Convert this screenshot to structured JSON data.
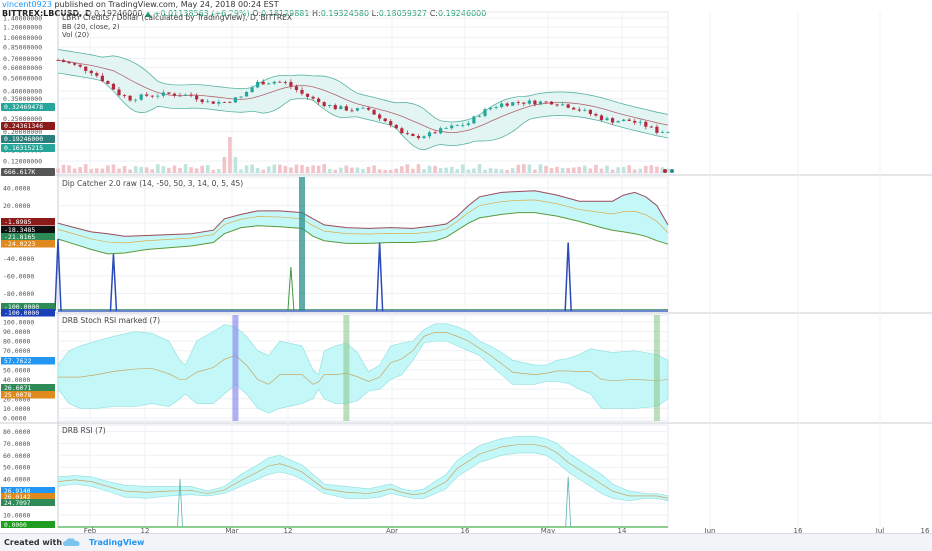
{
  "header": {
    "user": "vincent0923",
    "published": "published on TradingView.com, May 24, 2018 00:24 EST",
    "symbol": "BITTREX:LBCUSD, D",
    "last": "0.19246000",
    "change": "▲ +0.01138563 (+6.29%)",
    "open_label": "O:",
    "open": "0.18129881",
    "high_label": "H:",
    "high": "0.19324580",
    "low_label": "L:",
    "low": "0.18059327",
    "close_label": "C:",
    "close": "0.19246000"
  },
  "footer": {
    "created": "Created with",
    "brand": "TradingView"
  },
  "colors": {
    "bb_fill": "#e2f5f2",
    "bb_line": "#59b3a3",
    "basis": "#b4646e",
    "up": "#26a69a",
    "down": "#b5283f",
    "cyan_fill": "#c4f7f7",
    "blue_spike": "#2c4ab8",
    "green_spike": "#3f9a3f",
    "teal_bar": "#2a8f8a",
    "grid": "#eef1f4",
    "axis_text": "#555555"
  },
  "chart_data": [
    {
      "type": "candlestick",
      "title": "LBRY Credits / Dollar (calculated by TradingView), D, BITTREX",
      "legend": [
        "BB (20, close, 2)",
        "Vol (20)"
      ],
      "scale": "log",
      "y_ticks": [
        "1.40000000",
        "1.20000000",
        "1.00000000",
        "0.85000000",
        "0.70000000",
        "0.60000000",
        "0.50000000",
        "0.40000000",
        "0.35000000",
        "0.25000000",
        "0.20000000",
        "0.14500000",
        "0.12000000"
      ],
      "price_badges": [
        {
          "text": "0.32469478",
          "color": "#26a69a"
        },
        {
          "text": "0.24361346",
          "color": "#8b1a1a"
        },
        {
          "text": "0.19246000",
          "color": "#2a7f7c"
        },
        {
          "text": "0.16315215",
          "color": "#26a69a"
        },
        {
          "text": "666.617K",
          "color": "#555555"
        }
      ],
      "x_labels": [
        "Feb",
        "12",
        "Mar",
        "12",
        "Apr",
        "16",
        "May",
        "14",
        "Jun",
        "16",
        "Jul",
        "16"
      ],
      "close_path": [
        [
          0,
          0.68
        ],
        [
          3,
          0.62
        ],
        [
          6,
          0.56
        ],
        [
          9,
          0.45
        ],
        [
          11,
          0.38
        ],
        [
          13,
          0.35
        ],
        [
          16,
          0.37
        ],
        [
          20,
          0.38
        ],
        [
          24,
          0.37
        ],
        [
          27,
          0.33
        ],
        [
          30,
          0.33
        ],
        [
          33,
          0.36
        ],
        [
          36,
          0.46
        ],
        [
          39,
          0.47
        ],
        [
          41,
          0.46
        ],
        [
          44,
          0.38
        ],
        [
          47,
          0.33
        ],
        [
          50,
          0.3
        ],
        [
          53,
          0.29
        ],
        [
          56,
          0.29
        ],
        [
          58,
          0.25
        ],
        [
          60,
          0.23
        ],
        [
          62,
          0.19
        ],
        [
          64,
          0.18
        ],
        [
          67,
          0.19
        ],
        [
          70,
          0.21
        ],
        [
          72,
          0.22
        ],
        [
          74,
          0.23
        ],
        [
          76,
          0.27
        ],
        [
          78,
          0.3
        ],
        [
          80,
          0.32
        ],
        [
          83,
          0.33
        ],
        [
          86,
          0.33
        ],
        [
          89,
          0.33
        ],
        [
          92,
          0.31
        ],
        [
          94,
          0.29
        ],
        [
          96,
          0.27
        ],
        [
          98,
          0.25
        ],
        [
          100,
          0.24
        ],
        [
          103,
          0.24
        ],
        [
          106,
          0.22
        ],
        [
          108,
          0.2
        ],
        [
          110,
          0.2
        ]
      ]
    },
    {
      "type": "line",
      "title": "Dip Catcher 2.0 raw (14, -50, 50, 3, 14, 0, 5, 45)",
      "y_ticks": [
        "40.0000",
        "20.0000",
        "0.0000",
        "-20.0000",
        "-40.0000",
        "-60.0000",
        "-80.0000"
      ],
      "badges": [
        {
          "text": "-1.8985",
          "color": "#8b1a1a"
        },
        {
          "text": "-18.3485",
          "color": "#111111"
        },
        {
          "text": "-21.8165",
          "color": "#2e8b57"
        },
        {
          "text": "-24.0223",
          "color": "#e08a1e"
        },
        {
          "text": "-100.0000",
          "color": "#2e8b57"
        },
        {
          "text": "-100.0000",
          "color": "#1a3fb8"
        }
      ],
      "ylim": [
        -100,
        48
      ],
      "upper": [
        [
          0,
          0
        ],
        [
          3,
          -5
        ],
        [
          6,
          -10
        ],
        [
          9,
          -12
        ],
        [
          12,
          -15
        ],
        [
          16,
          -14
        ],
        [
          20,
          -13
        ],
        [
          24,
          -12
        ],
        [
          28,
          -8
        ],
        [
          30,
          5
        ],
        [
          33,
          10
        ],
        [
          36,
          14
        ],
        [
          40,
          14
        ],
        [
          44,
          12
        ],
        [
          46,
          5
        ],
        [
          48,
          -2
        ],
        [
          52,
          -5
        ],
        [
          56,
          -6
        ],
        [
          60,
          -5
        ],
        [
          64,
          -6
        ],
        [
          68,
          -3
        ],
        [
          70,
          -1
        ],
        [
          72,
          8
        ],
        [
          74,
          20
        ],
        [
          76,
          30
        ],
        [
          80,
          35
        ],
        [
          83,
          36
        ],
        [
          86,
          37
        ],
        [
          90,
          32
        ],
        [
          94,
          25
        ],
        [
          98,
          25
        ],
        [
          100,
          25
        ],
        [
          102,
          32
        ],
        [
          104,
          35
        ],
        [
          106,
          30
        ],
        [
          108,
          20
        ],
        [
          110,
          -2
        ]
      ],
      "lower": [
        [
          0,
          -18
        ],
        [
          3,
          -24
        ],
        [
          6,
          -30
        ],
        [
          9,
          -35
        ],
        [
          12,
          -34
        ],
        [
          16,
          -30
        ],
        [
          20,
          -28
        ],
        [
          24,
          -26
        ],
        [
          28,
          -22
        ],
        [
          30,
          -12
        ],
        [
          33,
          -5
        ],
        [
          36,
          -3
        ],
        [
          40,
          -4
        ],
        [
          44,
          -6
        ],
        [
          46,
          -15
        ],
        [
          48,
          -20
        ],
        [
          52,
          -23
        ],
        [
          56,
          -23
        ],
        [
          60,
          -22
        ],
        [
          64,
          -22
        ],
        [
          68,
          -20
        ],
        [
          70,
          -16
        ],
        [
          72,
          -8
        ],
        [
          74,
          0
        ],
        [
          76,
          6
        ],
        [
          80,
          10
        ],
        [
          83,
          12
        ],
        [
          86,
          12
        ],
        [
          90,
          8
        ],
        [
          94,
          2
        ],
        [
          98,
          -5
        ],
        [
          100,
          -8
        ],
        [
          102,
          -10
        ],
        [
          104,
          -12
        ],
        [
          106,
          -15
        ],
        [
          108,
          -20
        ],
        [
          110,
          -24
        ]
      ],
      "blue_spikes": [
        [
          0,
          -18
        ],
        [
          10,
          -35
        ],
        [
          58,
          -22
        ],
        [
          92,
          -22
        ]
      ],
      "green_spikes": [
        [
          42,
          -50
        ]
      ],
      "teal_bars": [
        44
      ]
    },
    {
      "type": "area",
      "title": "DRB Stoch RSI marked (7)",
      "y_ticks": [
        "100.0000",
        "90.0000",
        "80.0000",
        "70.0000",
        "60.0000",
        "50.0000",
        "40.0000",
        "30.0000",
        "20.0000",
        "10.0000",
        "0.0000"
      ],
      "badges": [
        {
          "text": "57.7622",
          "color": "#2196f3"
        },
        {
          "text": "26.6071",
          "color": "#2e8b57"
        },
        {
          "text": "25.0078",
          "color": "#e08a1e"
        }
      ],
      "ylim": [
        0,
        104
      ],
      "upper": [
        [
          0,
          55
        ],
        [
          2,
          70
        ],
        [
          4,
          75
        ],
        [
          7,
          80
        ],
        [
          10,
          85
        ],
        [
          14,
          90
        ],
        [
          17,
          88
        ],
        [
          20,
          80
        ],
        [
          22,
          60
        ],
        [
          23,
          55
        ],
        [
          25,
          80
        ],
        [
          28,
          90
        ],
        [
          30,
          97
        ],
        [
          32,
          95
        ],
        [
          34,
          85
        ],
        [
          36,
          70
        ],
        [
          38,
          65
        ],
        [
          40,
          80
        ],
        [
          44,
          75
        ],
        [
          46,
          50
        ],
        [
          47,
          45
        ],
        [
          48,
          70
        ],
        [
          50,
          75
        ],
        [
          52,
          78
        ],
        [
          54,
          68
        ],
        [
          56,
          48
        ],
        [
          58,
          55
        ],
        [
          60,
          75
        ],
        [
          62,
          78
        ],
        [
          64,
          80
        ],
        [
          66,
          92
        ],
        [
          68,
          98
        ],
        [
          70,
          98
        ],
        [
          72,
          95
        ],
        [
          74,
          90
        ],
        [
          76,
          80
        ],
        [
          78,
          75
        ],
        [
          80,
          68
        ],
        [
          82,
          60
        ],
        [
          86,
          55
        ],
        [
          88,
          55
        ],
        [
          90,
          60
        ],
        [
          92,
          62
        ],
        [
          94,
          66
        ],
        [
          96,
          72
        ],
        [
          98,
          70
        ],
        [
          100,
          68
        ],
        [
          104,
          70
        ],
        [
          108,
          66
        ],
        [
          110,
          60
        ]
      ],
      "lower": [
        [
          0,
          30
        ],
        [
          2,
          15
        ],
        [
          4,
          10
        ],
        [
          7,
          10
        ],
        [
          10,
          12
        ],
        [
          14,
          12
        ],
        [
          17,
          15
        ],
        [
          20,
          12
        ],
        [
          22,
          20
        ],
        [
          23,
          25
        ],
        [
          25,
          15
        ],
        [
          28,
          15
        ],
        [
          30,
          25
        ],
        [
          32,
          35
        ],
        [
          34,
          25
        ],
        [
          36,
          10
        ],
        [
          38,
          5
        ],
        [
          40,
          10
        ],
        [
          44,
          15
        ],
        [
          46,
          20
        ],
        [
          47,
          30
        ],
        [
          48,
          20
        ],
        [
          50,
          15
        ],
        [
          52,
          15
        ],
        [
          54,
          18
        ],
        [
          56,
          28
        ],
        [
          58,
          30
        ],
        [
          60,
          40
        ],
        [
          62,
          45
        ],
        [
          64,
          60
        ],
        [
          66,
          78
        ],
        [
          68,
          80
        ],
        [
          70,
          80
        ],
        [
          72,
          75
        ],
        [
          74,
          70
        ],
        [
          76,
          65
        ],
        [
          78,
          55
        ],
        [
          80,
          45
        ],
        [
          82,
          35
        ],
        [
          86,
          35
        ],
        [
          88,
          38
        ],
        [
          90,
          38
        ],
        [
          92,
          36
        ],
        [
          94,
          30
        ],
        [
          96,
          25
        ],
        [
          98,
          10
        ],
        [
          100,
          10
        ],
        [
          104,
          10
        ],
        [
          108,
          12
        ],
        [
          110,
          20
        ]
      ],
      "purple_bands": [
        32
      ],
      "green_bands": [
        52,
        108
      ]
    },
    {
      "type": "area",
      "title": "DRB RSI (7)",
      "y_ticks": [
        "80.0000",
        "70.0000",
        "60.0000",
        "50.0000",
        "40.0000",
        "30.0000",
        "20.0000",
        "10.0000"
      ],
      "badges": [
        {
          "text": "26.9140",
          "color": "#2196f3"
        },
        {
          "text": "26.0142",
          "color": "#e08a1e"
        },
        {
          "text": "24.7097",
          "color": "#2e8b57"
        },
        {
          "text": "0.0000",
          "color": "#1e9e1e"
        }
      ],
      "ylim": [
        0,
        82
      ],
      "upper": [
        [
          0,
          42
        ],
        [
          3,
          43
        ],
        [
          6,
          42
        ],
        [
          9,
          38
        ],
        [
          12,
          35
        ],
        [
          16,
          34
        ],
        [
          20,
          34
        ],
        [
          24,
          34
        ],
        [
          27,
          30
        ],
        [
          30,
          34
        ],
        [
          33,
          44
        ],
        [
          36,
          52
        ],
        [
          38,
          58
        ],
        [
          40,
          60
        ],
        [
          42,
          56
        ],
        [
          44,
          52
        ],
        [
          46,
          44
        ],
        [
          48,
          36
        ],
        [
          52,
          34
        ],
        [
          56,
          32
        ],
        [
          58,
          34
        ],
        [
          60,
          36
        ],
        [
          62,
          32
        ],
        [
          64,
          30
        ],
        [
          66,
          32
        ],
        [
          70,
          44
        ],
        [
          72,
          56
        ],
        [
          76,
          68
        ],
        [
          80,
          74
        ],
        [
          83,
          76
        ],
        [
          86,
          76
        ],
        [
          88,
          74
        ],
        [
          90,
          70
        ],
        [
          92,
          62
        ],
        [
          94,
          56
        ],
        [
          96,
          50
        ],
        [
          98,
          44
        ],
        [
          100,
          36
        ],
        [
          103,
          30
        ],
        [
          106,
          28
        ],
        [
          108,
          28
        ],
        [
          110,
          26
        ]
      ],
      "lower": [
        [
          0,
          34
        ],
        [
          3,
          36
        ],
        [
          6,
          34
        ],
        [
          9,
          30
        ],
        [
          12,
          25
        ],
        [
          16,
          24
        ],
        [
          20,
          26
        ],
        [
          24,
          27
        ],
        [
          27,
          26
        ],
        [
          30,
          28
        ],
        [
          33,
          34
        ],
        [
          36,
          40
        ],
        [
          38,
          44
        ],
        [
          40,
          46
        ],
        [
          42,
          44
        ],
        [
          44,
          40
        ],
        [
          46,
          34
        ],
        [
          48,
          28
        ],
        [
          52,
          24
        ],
        [
          56,
          24
        ],
        [
          58,
          25
        ],
        [
          60,
          28
        ],
        [
          62,
          26
        ],
        [
          64,
          24
        ],
        [
          66,
          24
        ],
        [
          70,
          32
        ],
        [
          72,
          42
        ],
        [
          76,
          54
        ],
        [
          80,
          60
        ],
        [
          83,
          62
        ],
        [
          86,
          62
        ],
        [
          88,
          60
        ],
        [
          90,
          54
        ],
        [
          92,
          46
        ],
        [
          94,
          40
        ],
        [
          96,
          34
        ],
        [
          98,
          28
        ],
        [
          100,
          24
        ],
        [
          103,
          22
        ],
        [
          106,
          24
        ],
        [
          108,
          24
        ],
        [
          110,
          22
        ]
      ],
      "spikes": [
        [
          22,
          40
        ],
        [
          92,
          42
        ]
      ]
    }
  ]
}
